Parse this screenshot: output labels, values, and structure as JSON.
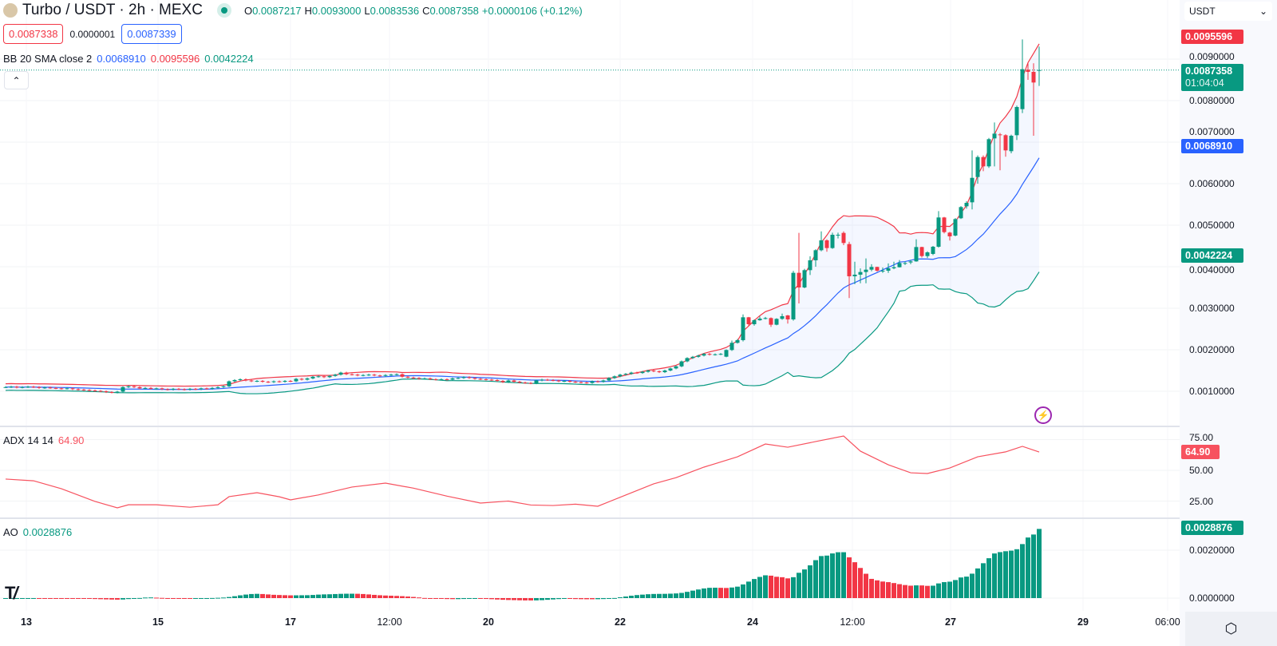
{
  "header": {
    "symbol": "Turbo / USDT · 2h · MEXC",
    "o_label": "O",
    "o": "0.0087217",
    "h_label": "H",
    "h": "0.0093000",
    "l_label": "L",
    "l": "0.0083536",
    "c_label": "C",
    "c": "0.0087358",
    "change": "+0.0000106 (+0.12%)"
  },
  "bidask": {
    "sell": "0.0087338",
    "spread": "0.0000001",
    "buy": "0.0087339"
  },
  "bb_legend": {
    "name": "BB 20 SMA close 2",
    "basis": "0.0068910",
    "upper": "0.0095596",
    "lower": "0.0042224"
  },
  "adx_legend": {
    "name": "ADX 14 14",
    "value": "64.90"
  },
  "ao_legend": {
    "name": "AO",
    "value": "0.0028876"
  },
  "currency": "USDT",
  "price_axis": [
    "0.0090000",
    "0.0080000",
    "0.0070000",
    "0.0060000",
    "0.0050000",
    "0.0040000",
    "0.0030000",
    "0.0020000",
    "0.0010000"
  ],
  "adx_axis": [
    "75.00",
    "50.00",
    "25.00"
  ],
  "ao_axis": [
    "0.0020000",
    "0.0000000"
  ],
  "tags": {
    "upper": "0.0095596",
    "last": "0.0087358",
    "countdown": "01:04:04",
    "basis": "0.0068910",
    "lower": "0.0042224",
    "adx": "64.90",
    "ao": "0.0028876"
  },
  "time_axis": [
    "13",
    "15",
    "17",
    "12:00",
    "20",
    "22",
    "24",
    "12:00",
    "27",
    "29",
    "06:00"
  ],
  "colors": {
    "up": "#089981",
    "down": "#f23645",
    "basis": "#2962ff",
    "upper": "#f23645",
    "lower": "#089981",
    "adx": "#f7525f",
    "ao_up": "#089981",
    "ao_down": "#f23645"
  },
  "chart_data": {
    "type": "candlestick",
    "early_closes": [
      0.0011,
      0.00111,
      0.00109,
      0.0011,
      0.00111,
      0.0011,
      0.00108,
      0.00109,
      0.00108,
      0.00107,
      0.00106,
      0.00107,
      0.00105,
      0.00104,
      0.00103,
      0.00102,
      0.00101,
      0.001,
      0.00098,
      0.00097,
      0.00099,
      0.0011,
      0.00112,
      0.0011,
      0.00107,
      0.00108,
      0.00106,
      0.00107,
      0.00105,
      0.00104,
      0.00106,
      0.00105,
      0.00104,
      0.00106,
      0.00105,
      0.00107,
      0.00106,
      0.00108,
      0.0011,
      0.00112,
      0.00124,
      0.00127,
      0.00129,
      0.00126,
      0.00124,
      0.00125,
      0.00123,
      0.00122,
      0.00124,
      0.00123,
      0.00125,
      0.00124,
      0.0013,
      0.00128,
      0.00131,
      0.00135,
      0.00136,
      0.00134,
      0.00137,
      0.0014,
      0.00145,
      0.00141,
      0.0014,
      0.00138,
      0.00139,
      0.0014,
      0.00138,
      0.00137,
      0.00139,
      0.0014,
      0.00141,
      0.00135,
      0.00133,
      0.00132,
      0.0013,
      0.00131,
      0.00129,
      0.00128,
      0.00129,
      0.00128,
      0.00131,
      0.00132,
      0.00134,
      0.00132,
      0.0013,
      0.00129,
      0.00128,
      0.00127,
      0.00125,
      0.00122,
      0.00126,
      0.00123,
      0.00121,
      0.0012,
      0.00119,
      0.00126,
      0.00128,
      0.00127,
      0.00126,
      0.00124,
      0.00125,
      0.00123,
      0.00122,
      0.00121,
      0.0012,
      0.00124,
      0.00123,
      0.00126,
      0.00132,
      0.00136,
      0.0014,
      0.00142,
      0.00145,
      0.00144,
      0.00147,
      0.0015,
      0.00148,
      0.00146,
      0.0015,
      0.00155,
      0.0016,
      0.00172,
      0.0018,
      0.00183,
      0.00186,
      0.0019,
      0.00188,
      0.00189,
      0.0019
    ],
    "ohlc": [
      [
        0.001833,
        0.00201,
        0.00182,
        0.001994
      ],
      [
        0.001994,
        0.00222,
        0.00197,
        0.002167
      ],
      [
        0.002167,
        0.00226,
        0.00215,
        0.002231
      ],
      [
        0.002231,
        0.00285,
        0.0022,
        0.002782
      ],
      [
        0.002782,
        0.00279,
        0.00258,
        0.002615
      ],
      [
        0.002615,
        0.00273,
        0.00258,
        0.002712
      ],
      [
        0.00271,
        0.0028,
        0.0027,
        0.00275
      ],
      [
        0.00275,
        0.00279,
        0.00273,
        0.002763
      ],
      [
        0.002763,
        0.00278,
        0.00255,
        0.002603
      ],
      [
        0.002603,
        0.00276,
        0.00259,
        0.002744
      ],
      [
        0.002744,
        0.00287,
        0.00272,
        0.002808
      ],
      [
        0.002827,
        0.00284,
        0.00263,
        0.002731
      ],
      [
        0.002731,
        0.0039,
        0.0027,
        0.003853
      ],
      [
        0.003853,
        0.004814,
        0.003115,
        0.0035
      ],
      [
        0.0035,
        0.00395,
        0.00348,
        0.003917
      ],
      [
        0.003917,
        0.00425,
        0.0038,
        0.004154
      ],
      [
        0.004154,
        0.00442,
        0.004,
        0.004397
      ],
      [
        0.004397,
        0.00485,
        0.00437,
        0.004635
      ],
      [
        0.004635,
        0.00466,
        0.00436,
        0.004449
      ],
      [
        0.004449,
        0.00482,
        0.00443,
        0.004769
      ],
      [
        0.004769,
        0.00482,
        0.00468,
        0.004769
      ],
      [
        0.004814,
        0.00485,
        0.00452,
        0.004571
      ],
      [
        0.004545,
        0.0046,
        0.003244,
        0.003769
      ],
      [
        0.003769,
        0.00412,
        0.00358,
        0.003808
      ],
      [
        0.003808,
        0.00396,
        0.0036,
        0.003872
      ],
      [
        0.003872,
        0.0042,
        0.0036,
        0.003929
      ],
      [
        0.003929,
        0.00406,
        0.00389,
        0.003994
      ],
      [
        0.003994,
        0.004,
        0.00388,
        0.003904
      ],
      [
        0.003904,
        0.00398,
        0.00385,
        0.003904
      ],
      [
        0.003904,
        0.00408,
        0.00385,
        0.003962
      ],
      [
        0.003962,
        0.00412,
        0.00394,
        0.003987
      ],
      [
        0.003987,
        0.00416,
        0.00398,
        0.00409
      ],
      [
        0.00409,
        0.00412,
        0.00404,
        0.00409
      ],
      [
        0.004103,
        0.00416,
        0.00406,
        0.004128
      ],
      [
        0.004128,
        0.00466,
        0.00412,
        0.004474
      ],
      [
        0.004474,
        0.00448,
        0.00422,
        0.004256
      ],
      [
        0.004256,
        0.00437,
        0.00421,
        0.004346
      ],
      [
        0.004308,
        0.0045,
        0.00428,
        0.004481
      ],
      [
        0.004481,
        0.00534,
        0.00446,
        0.005186
      ],
      [
        0.005186,
        0.0052,
        0.0048,
        0.004833
      ],
      [
        0.004821,
        0.00484,
        0.00463,
        0.004731
      ],
      [
        0.00475,
        0.00517,
        0.00473,
        0.005147
      ],
      [
        0.005167,
        0.00546,
        0.00515,
        0.005436
      ],
      [
        0.005455,
        0.00558,
        0.0054,
        0.005538
      ],
      [
        0.005551,
        0.0068,
        0.00538,
        0.00614
      ],
      [
        0.00616,
        0.00668,
        0.006,
        0.006641
      ],
      [
        0.006641,
        0.00668,
        0.0063,
        0.006417
      ],
      [
        0.006417,
        0.0071,
        0.00638,
        0.007071
      ],
      [
        0.00709,
        0.007474,
        0.006417,
        0.007205
      ],
      [
        0.007186,
        0.00722,
        0.006321,
        0.007173
      ],
      [
        0.007167,
        0.00719,
        0.00665,
        0.006801
      ],
      [
        0.006782,
        0.00718,
        0.00673,
        0.007154
      ],
      [
        0.007167,
        0.00788,
        0.00705,
        0.007846
      ],
      [
        0.007795,
        0.009474,
        0.0077,
        0.008756
      ],
      [
        0.008744,
        0.0089,
        0.0085,
        0.008692
      ],
      [
        0.008692,
        0.0089,
        0.007154,
        0.008436
      ],
      [
        0.0087217,
        0.0093,
        0.0083536,
        0.0087358
      ]
    ],
    "bollinger": {
      "period": 20,
      "stddev": 2
    },
    "ao": {
      "fast": 5,
      "slow": 34,
      "last": 0.0028876
    },
    "adx": [
      [
        0,
        42.9
      ],
      [
        5,
        41.5
      ],
      [
        10,
        35
      ],
      [
        16,
        24.7
      ],
      [
        20,
        19.5
      ],
      [
        22,
        22
      ],
      [
        27,
        22
      ],
      [
        33,
        20
      ],
      [
        38,
        22
      ],
      [
        40,
        28.6
      ],
      [
        45,
        31.8
      ],
      [
        49,
        28.5
      ],
      [
        51,
        26
      ],
      [
        56,
        30
      ],
      [
        62,
        36.4
      ],
      [
        68,
        39.6
      ],
      [
        73,
        35.5
      ],
      [
        79,
        29
      ],
      [
        85,
        23.4
      ],
      [
        90,
        25
      ],
      [
        94,
        21.8
      ],
      [
        98,
        21.4
      ],
      [
        102,
        22.5
      ],
      [
        106,
        20.8
      ],
      [
        111,
        29.9
      ],
      [
        116,
        39
      ],
      [
        120,
        44
      ],
      [
        125,
        52.6
      ],
      [
        131,
        61
      ],
      [
        136,
        71.4
      ],
      [
        140,
        68.8
      ],
      [
        145,
        73.4
      ],
      [
        150,
        77.9
      ],
      [
        153,
        65.6
      ],
      [
        158,
        54.5
      ],
      [
        162,
        48
      ],
      [
        165,
        47.4
      ],
      [
        169,
        51.9
      ],
      [
        174,
        61
      ],
      [
        179,
        65
      ],
      [
        182,
        69.5
      ],
      [
        185,
        64.9
      ]
    ]
  }
}
